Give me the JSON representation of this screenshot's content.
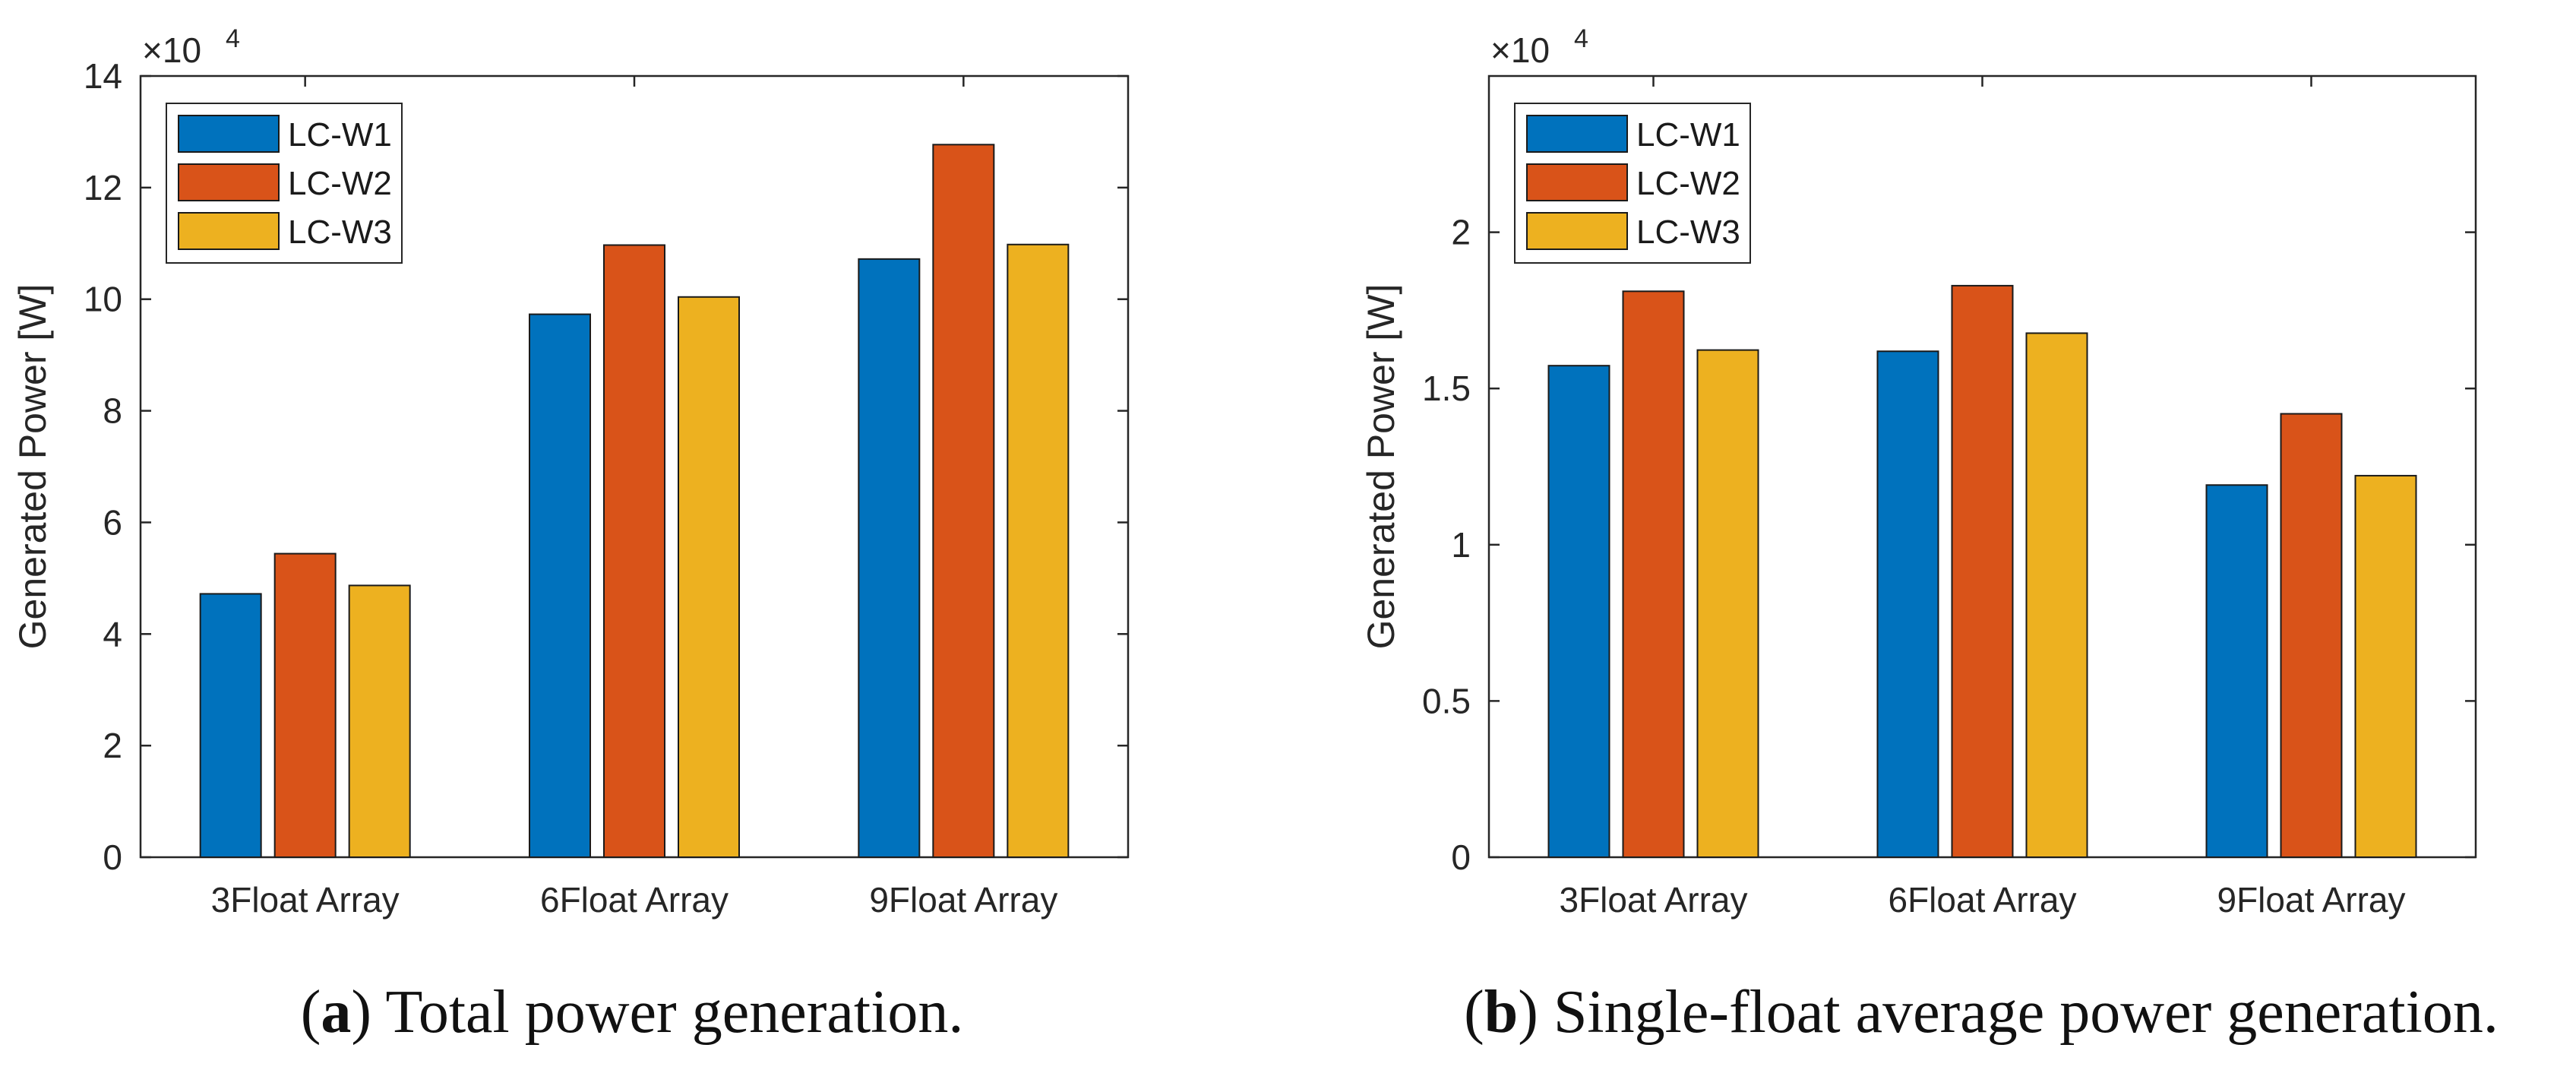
{
  "chart_data": [
    {
      "type": "bar",
      "panel": "a",
      "caption_letter": "a",
      "caption_text": "Total power generation.",
      "ylabel": "Generated Power [W]",
      "xlabel": "",
      "exponent_base": "×10",
      "exponent_power": "4",
      "ylim": [
        0,
        140000
      ],
      "yticks": [
        0,
        20000,
        40000,
        60000,
        80000,
        100000,
        120000,
        140000
      ],
      "ytick_labels": [
        "0",
        "2",
        "4",
        "6",
        "8",
        "10",
        "12",
        "14"
      ],
      "categories": [
        "3Float Array",
        "6Float Array",
        "9Float Array"
      ],
      "legend_position": "top-left",
      "series": [
        {
          "name": "LC-W1",
          "color": "#0072BD",
          "values": [
            47200,
            97300,
            107200
          ]
        },
        {
          "name": "LC-W2",
          "color": "#D95319",
          "values": [
            54400,
            109700,
            127700
          ]
        },
        {
          "name": "LC-W3",
          "color": "#EDB120",
          "values": [
            48700,
            100400,
            109800
          ]
        }
      ]
    },
    {
      "type": "bar",
      "panel": "b",
      "caption_letter": "b",
      "caption_text": "Single-float average power generation.",
      "ylabel": "Generated Power [W]",
      "xlabel": "",
      "exponent_base": "×10",
      "exponent_power": "4",
      "ylim": [
        0,
        25000
      ],
      "yticks": [
        0,
        5000,
        10000,
        15000,
        20000
      ],
      "ytick_labels": [
        "0",
        "0.5",
        "1",
        "1.5",
        "2"
      ],
      "categories": [
        "3Float Array",
        "6Float Array",
        "9Float Array"
      ],
      "legend_position": "top-left",
      "series": [
        {
          "name": "LC-W1",
          "color": "#0072BD",
          "values": [
            15730,
            16190,
            11910
          ]
        },
        {
          "name": "LC-W2",
          "color": "#D95319",
          "values": [
            18110,
            18290,
            14190
          ]
        },
        {
          "name": "LC-W3",
          "color": "#EDB120",
          "values": [
            16230,
            16770,
            12210
          ]
        }
      ]
    }
  ]
}
